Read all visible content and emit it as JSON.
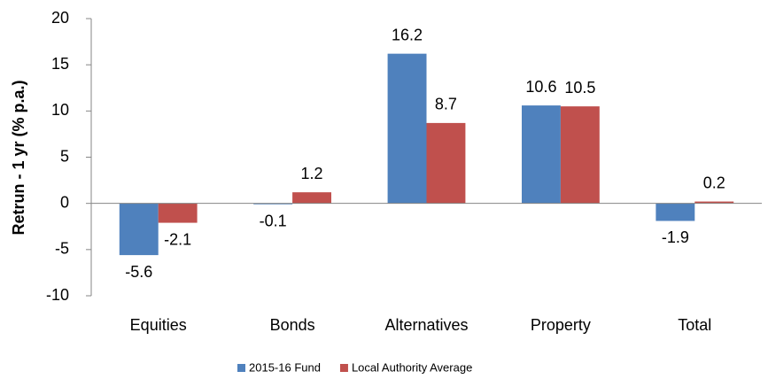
{
  "chart_data": {
    "type": "bar",
    "y_label": "Retrun - 1 yr (% p.a.)",
    "categories": [
      "Equities",
      "Bonds",
      "Alternatives",
      "Property",
      "Total"
    ],
    "series": [
      {
        "name": "2015-16 Fund",
        "color": "#4f81bd",
        "values": [
          -5.6,
          -0.1,
          16.2,
          10.6,
          -1.9
        ]
      },
      {
        "name": "Local Authority Average",
        "color": "#c0504d",
        "values": [
          -2.1,
          1.2,
          8.7,
          10.5,
          0.2
        ]
      }
    ],
    "ylim": [
      -10,
      20
    ],
    "yticks": [
      -10,
      -5,
      0,
      5,
      10,
      15,
      20
    ],
    "legend": "bottom"
  }
}
